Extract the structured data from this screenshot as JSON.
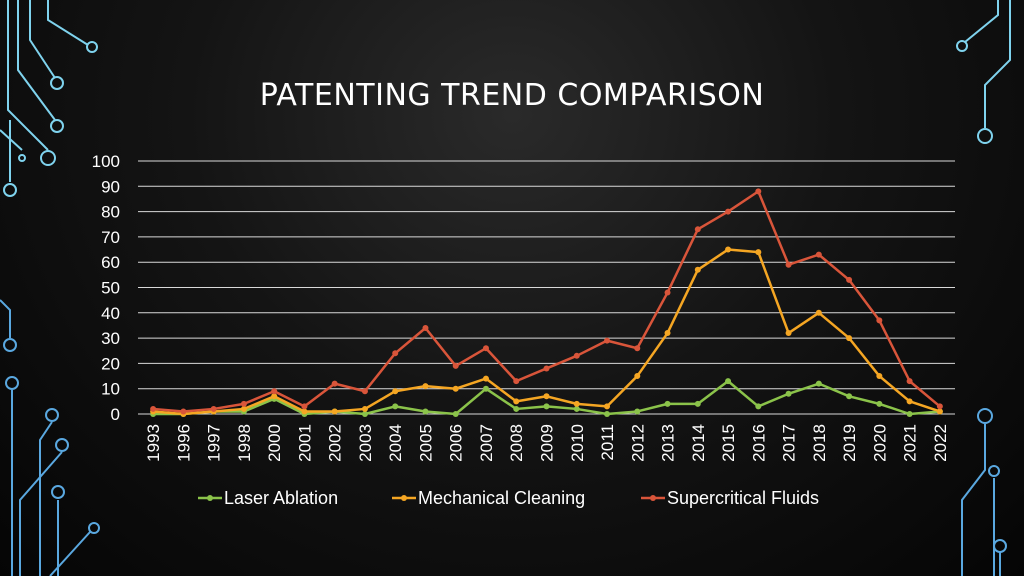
{
  "colors": {
    "laser": "#8bc34a",
    "mechanical": "#f5a623",
    "supercritical": "#d9553a",
    "circuit": "#7fd3ee",
    "grid": "#d9d9d9"
  },
  "chart_data": {
    "type": "line",
    "title": "PATENTING TREND COMPARISON",
    "xlabel": "",
    "ylabel": "",
    "ylim": [
      0,
      100
    ],
    "yticks": [
      "0",
      "10",
      "20",
      "30",
      "40",
      "50",
      "60",
      "70",
      "80",
      "90",
      "100"
    ],
    "grid": true,
    "legend_position": "bottom",
    "categories": [
      "1993",
      "1996",
      "1997",
      "1998",
      "2000",
      "2001",
      "2002",
      "2003",
      "2004",
      "2005",
      "2006",
      "2007",
      "2008",
      "2009",
      "2010",
      "2011",
      "2012",
      "2013",
      "2014",
      "2015",
      "2016",
      "2017",
      "2018",
      "2019",
      "2020",
      "2021",
      "2022"
    ],
    "series": [
      {
        "name": "Laser Ablation",
        "color_key": "laser",
        "values": [
          0,
          0,
          1,
          1,
          6,
          0,
          1,
          0,
          3,
          1,
          0,
          10,
          2,
          3,
          2,
          0,
          1,
          4,
          4,
          13,
          3,
          8,
          12,
          7,
          4,
          0,
          1
        ]
      },
      {
        "name": "Mechanical Cleaning",
        "color_key": "mechanical",
        "values": [
          1,
          0,
          1,
          2,
          7,
          1,
          1,
          2,
          9,
          11,
          10,
          14,
          5,
          7,
          4,
          3,
          15,
          32,
          57,
          65,
          64,
          32,
          40,
          30,
          15,
          5,
          1
        ]
      },
      {
        "name": "Supercritical Fluids",
        "color_key": "supercritical",
        "values": [
          2,
          1,
          2,
          4,
          9,
          3,
          12,
          9,
          24,
          34,
          19,
          26,
          13,
          18,
          23,
          29,
          26,
          48,
          73,
          80,
          88,
          59,
          63,
          53,
          37,
          13,
          3
        ]
      }
    ]
  }
}
